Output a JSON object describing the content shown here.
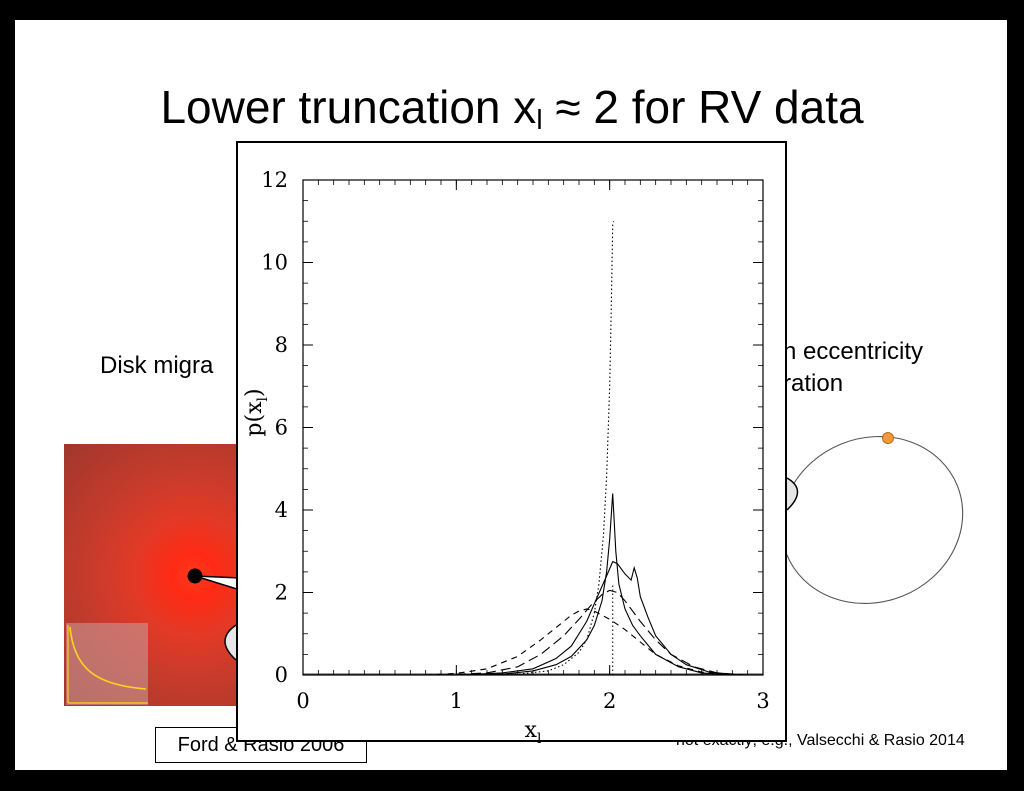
{
  "slide": {
    "title_main": "Lower truncation x",
    "title_sub": "l",
    "title_rest": " ≈ 2 for RV data",
    "left_label": "Disk migra",
    "right_label_line1": "h eccentricity",
    "right_label_line2": "ration",
    "ref_box": "Ford & Rasio 2006",
    "citation": "not exactly; e.g., Valsecchi & Rasio 2014"
  },
  "colors": {
    "disk_center": "#ff2a14",
    "disk_edge": "#a2372c",
    "planet_orange": "#f29a3a",
    "inset_curve": "#ffd21e"
  },
  "chart_data": {
    "type": "line",
    "xlabel": "x",
    "xlabel_sub": "l",
    "ylabel": "p(x",
    "ylabel_sub": "l",
    "ylabel_close": ")",
    "xlim": [
      0,
      3
    ],
    "ylim": [
      0,
      12
    ],
    "x_ticks": [
      "0",
      "1",
      "2",
      "3"
    ],
    "y_ticks": [
      "0",
      "2",
      "4",
      "6",
      "8",
      "10",
      "12"
    ],
    "vline_x": 2.02,
    "series": [
      {
        "style": "dotted",
        "x": [
          1.2,
          1.4,
          1.6,
          1.7,
          1.8,
          1.85,
          1.9,
          1.93,
          1.96,
          1.98,
          2.0,
          2.01,
          2.02,
          2.025
        ],
        "y": [
          0,
          0.02,
          0.1,
          0.25,
          0.55,
          0.85,
          1.5,
          2.2,
          3.4,
          4.8,
          7.0,
          8.8,
          10.9,
          11.0
        ]
      },
      {
        "style": "solid-peak",
        "x": [
          0.5,
          1.0,
          1.3,
          1.5,
          1.65,
          1.75,
          1.85,
          1.9,
          1.95,
          1.98,
          2.0,
          2.02,
          2.04,
          2.06,
          2.1,
          2.15,
          2.2,
          2.3,
          2.45,
          2.6,
          2.8
        ],
        "y": [
          0,
          0,
          0.02,
          0.1,
          0.25,
          0.45,
          0.85,
          1.2,
          1.8,
          2.5,
          3.3,
          4.4,
          3.0,
          2.2,
          1.6,
          1.2,
          0.95,
          0.5,
          0.2,
          0.05,
          0
        ]
      },
      {
        "style": "solid-bump",
        "x": [
          1.0,
          1.3,
          1.5,
          1.65,
          1.75,
          1.85,
          1.92,
          1.98,
          2.02,
          2.05,
          2.1,
          2.14,
          2.16,
          2.18,
          2.2,
          2.25,
          2.3,
          2.4,
          2.5,
          2.65,
          2.85
        ],
        "y": [
          0,
          0.05,
          0.15,
          0.4,
          0.7,
          1.3,
          1.9,
          2.4,
          2.75,
          2.7,
          2.45,
          2.3,
          2.6,
          2.35,
          1.9,
          1.4,
          0.95,
          0.5,
          0.25,
          0.07,
          0
        ]
      },
      {
        "style": "long-dash",
        "x": [
          0.9,
          1.2,
          1.4,
          1.55,
          1.7,
          1.8,
          1.88,
          1.95,
          2.0,
          2.05,
          2.1,
          2.2,
          2.3,
          2.4,
          2.55,
          2.7,
          2.9
        ],
        "y": [
          0,
          0.05,
          0.2,
          0.5,
          0.95,
          1.35,
          1.7,
          1.95,
          2.05,
          2.0,
          1.8,
          1.3,
          0.85,
          0.5,
          0.2,
          0.05,
          0
        ]
      },
      {
        "style": "dash",
        "x": [
          0.8,
          1.0,
          1.2,
          1.4,
          1.55,
          1.65,
          1.75,
          1.8,
          1.85,
          1.9,
          1.95,
          2.0,
          2.1,
          2.2,
          2.3,
          2.45,
          2.6,
          2.8
        ],
        "y": [
          0,
          0.04,
          0.15,
          0.45,
          0.85,
          1.15,
          1.45,
          1.55,
          1.6,
          1.55,
          1.45,
          1.35,
          1.1,
          0.8,
          0.5,
          0.22,
          0.07,
          0
        ]
      }
    ]
  }
}
